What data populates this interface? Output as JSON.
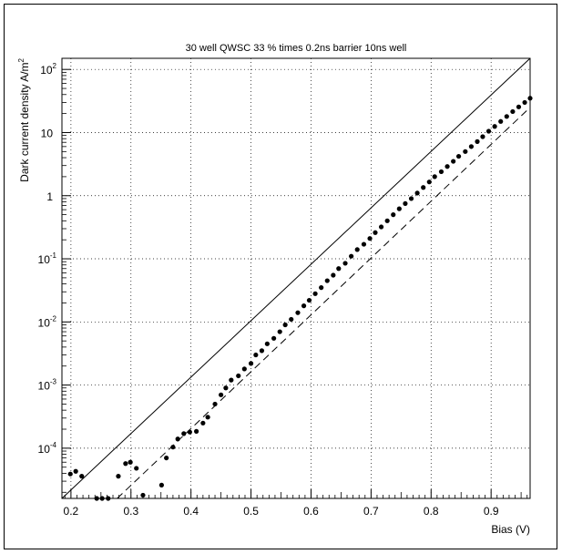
{
  "chart_data": {
    "type": "scatter",
    "title": "30 well QWSC 33 % times 0.2ns barrier 10ns well",
    "xlabel": "Bias (V)",
    "ylabel": "Dark current density A/m",
    "ylabel_sup": "2",
    "xlim": [
      0.185,
      0.965
    ],
    "ylim": [
      1.6e-05,
      150
    ],
    "yscale": "log",
    "grid": true,
    "x_ticks": [
      {
        "value": 0.2,
        "label": "0.2"
      },
      {
        "value": 0.3,
        "label": "0.3"
      },
      {
        "value": 0.4,
        "label": "0.4"
      },
      {
        "value": 0.5,
        "label": "0.5"
      },
      {
        "value": 0.6,
        "label": "0.6"
      },
      {
        "value": 0.7,
        "label": "0.7"
      },
      {
        "value": 0.8,
        "label": "0.8"
      },
      {
        "value": 0.9,
        "label": "0.9"
      }
    ],
    "y_ticks": [
      {
        "value": 100,
        "base": "10",
        "exp": "2"
      },
      {
        "value": 10,
        "base": "10",
        "exp": ""
      },
      {
        "value": 1,
        "base": "1",
        "exp": ""
      },
      {
        "value": 0.1,
        "base": "10",
        "exp": "-1"
      },
      {
        "value": 0.01,
        "base": "10",
        "exp": "-2"
      },
      {
        "value": 0.001,
        "base": "10",
        "exp": "-3"
      },
      {
        "value": 0.0001,
        "base": "10",
        "exp": "-4"
      }
    ],
    "lines": [
      {
        "style": "solid",
        "x": [
          0.185,
          0.965
        ],
        "y": [
          1.6e-05,
          150
        ]
      },
      {
        "style": "dashed",
        "x": [
          0.277,
          0.965
        ],
        "y": [
          1.6e-05,
          25
        ]
      }
    ],
    "points": [
      [
        0.199,
        3.9e-05
      ],
      [
        0.208,
        4.3e-05
      ],
      [
        0.218,
        3.6e-05
      ],
      [
        0.243,
        1.6e-05
      ],
      [
        0.252,
        1.6e-05
      ],
      [
        0.262,
        1.6e-05
      ],
      [
        0.279,
        3.6e-05
      ],
      [
        0.291,
        5.7e-05
      ],
      [
        0.299,
        6e-05
      ],
      [
        0.309,
        4.8e-05
      ],
      [
        0.32,
        1.8e-05
      ],
      [
        0.351,
        2.6e-05
      ],
      [
        0.359,
        7e-05
      ],
      [
        0.37,
        0.000104
      ],
      [
        0.378,
        0.00014
      ],
      [
        0.388,
        0.00017
      ],
      [
        0.398,
        0.00018
      ],
      [
        0.409,
        0.000185
      ],
      [
        0.42,
        0.00025
      ],
      [
        0.428,
        0.00031
      ],
      [
        0.44,
        0.0005
      ],
      [
        0.45,
        0.0007
      ],
      [
        0.458,
        0.0009
      ],
      [
        0.467,
        0.0012
      ],
      [
        0.479,
        0.0014
      ],
      [
        0.489,
        0.0018
      ],
      [
        0.5,
        0.0022
      ],
      [
        0.508,
        0.003
      ],
      [
        0.518,
        0.0035
      ],
      [
        0.527,
        0.0045
      ],
      [
        0.538,
        0.0055
      ],
      [
        0.548,
        0.007
      ],
      [
        0.557,
        0.009
      ],
      [
        0.567,
        0.011
      ],
      [
        0.578,
        0.014
      ],
      [
        0.588,
        0.018
      ],
      [
        0.597,
        0.022
      ],
      [
        0.607,
        0.028
      ],
      [
        0.617,
        0.035
      ],
      [
        0.627,
        0.045
      ],
      [
        0.637,
        0.055
      ],
      [
        0.646,
        0.07
      ],
      [
        0.657,
        0.085
      ],
      [
        0.667,
        0.11
      ],
      [
        0.677,
        0.14
      ],
      [
        0.688,
        0.17
      ],
      [
        0.698,
        0.21
      ],
      [
        0.707,
        0.26
      ],
      [
        0.717,
        0.32
      ],
      [
        0.727,
        0.4
      ],
      [
        0.737,
        0.5
      ],
      [
        0.747,
        0.62
      ],
      [
        0.757,
        0.75
      ],
      [
        0.767,
        0.9
      ],
      [
        0.777,
        1.1
      ],
      [
        0.787,
        1.35
      ],
      [
        0.797,
        1.65
      ],
      [
        0.806,
        2.0
      ],
      [
        0.817,
        2.4
      ],
      [
        0.827,
        2.9
      ],
      [
        0.837,
        3.5
      ],
      [
        0.846,
        4.2
      ],
      [
        0.857,
        5.0
      ],
      [
        0.867,
        6.0
      ],
      [
        0.877,
        7.2
      ],
      [
        0.886,
        8.6
      ],
      [
        0.896,
        10.5
      ],
      [
        0.906,
        12.5
      ],
      [
        0.916,
        15
      ],
      [
        0.926,
        18
      ],
      [
        0.936,
        21.5
      ],
      [
        0.946,
        25.5
      ],
      [
        0.956,
        30
      ],
      [
        0.965,
        35
      ]
    ]
  }
}
